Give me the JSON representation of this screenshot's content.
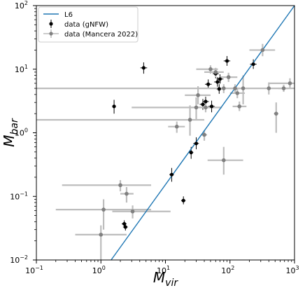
{
  "chart_data": {
    "type": "scatter",
    "xscale": "log",
    "yscale": "log",
    "xlim": [
      0.1,
      1000
    ],
    "ylim": [
      0.01,
      100
    ],
    "xlabel_base": "M",
    "xlabel_sub": "vir",
    "ylabel_base": "M",
    "ylabel_sub": "bar",
    "grid": false,
    "legend_position": "top-left",
    "x_ticks": [
      {
        "value": 0.1,
        "base": "10",
        "exp": "−1"
      },
      {
        "value": 1,
        "base": "10",
        "exp": "0"
      },
      {
        "value": 10,
        "base": "10",
        "exp": "1"
      },
      {
        "value": 100,
        "base": "10",
        "exp": "2"
      },
      {
        "value": 1000,
        "base": "10",
        "exp": "3"
      }
    ],
    "y_ticks": [
      {
        "value": 0.01,
        "base": "10",
        "exp": "−2"
      },
      {
        "value": 0.1,
        "base": "10",
        "exp": "−1"
      },
      {
        "value": 1,
        "base": "10",
        "exp": "0"
      },
      {
        "value": 10,
        "base": "10",
        "exp": "1"
      },
      {
        "value": 100,
        "base": "10",
        "exp": "2"
      }
    ],
    "line": {
      "name": "L6",
      "color": "#1f77b4",
      "x": [
        1.44,
        1000
      ],
      "y": [
        0.01,
        100
      ]
    },
    "series": [
      {
        "name": "data (gNFW)",
        "color": "#000000",
        "points": [
          {
            "x": 1.6,
            "y": 2.6,
            "xlo": 1.5,
            "xhi": 1.7,
            "ylo": 2.0,
            "yhi": 3.3
          },
          {
            "x": 4.6,
            "y": 10.5,
            "xlo": 4.1,
            "xhi": 5.2,
            "ylo": 8.5,
            "yhi": 12.8
          },
          {
            "x": 2.3,
            "y": 0.037,
            "xlo": 2.1,
            "xhi": 2.5,
            "ylo": 0.032,
            "yhi": 0.042
          },
          {
            "x": 2.4,
            "y": 0.033,
            "xlo": 2.2,
            "xhi": 2.6,
            "ylo": 0.029,
            "yhi": 0.038
          },
          {
            "x": 12.5,
            "y": 0.22,
            "xlo": 11.5,
            "xhi": 13.5,
            "ylo": 0.17,
            "yhi": 0.28
          },
          {
            "x": 19,
            "y": 0.086,
            "xlo": 17.5,
            "xhi": 20.5,
            "ylo": 0.075,
            "yhi": 0.1
          },
          {
            "x": 25,
            "y": 0.49,
            "xlo": 23,
            "xhi": 27,
            "ylo": 0.39,
            "yhi": 0.6
          },
          {
            "x": 30,
            "y": 0.68,
            "xlo": 27,
            "xhi": 33,
            "ylo": 0.55,
            "yhi": 0.85
          },
          {
            "x": 38,
            "y": 2.8,
            "xlo": 34,
            "xhi": 42,
            "ylo": 2.3,
            "yhi": 3.4
          },
          {
            "x": 42,
            "y": 3.1,
            "xlo": 38,
            "xhi": 47,
            "ylo": 2.6,
            "yhi": 3.7
          },
          {
            "x": 46,
            "y": 5.8,
            "xlo": 41,
            "xhi": 52,
            "ylo": 4.9,
            "yhi": 6.9
          },
          {
            "x": 52,
            "y": 2.6,
            "xlo": 46,
            "xhi": 58,
            "ylo": 2.1,
            "yhi": 3.2
          },
          {
            "x": 60,
            "y": 8.5,
            "xlo": 54,
            "xhi": 67,
            "ylo": 7.2,
            "yhi": 10.1
          },
          {
            "x": 64,
            "y": 6.3,
            "xlo": 57,
            "xhi": 72,
            "ylo": 5.3,
            "yhi": 7.5
          },
          {
            "x": 70,
            "y": 7.0,
            "xlo": 62,
            "xhi": 79,
            "ylo": 5.9,
            "yhi": 8.3
          },
          {
            "x": 68,
            "y": 4.9,
            "xlo": 61,
            "xhi": 76,
            "ylo": 4.1,
            "yhi": 5.8
          },
          {
            "x": 90,
            "y": 13.5,
            "xlo": 80,
            "xhi": 101,
            "ylo": 11.3,
            "yhi": 16.1
          },
          {
            "x": 230,
            "y": 12.0,
            "xlo": 205,
            "xhi": 258,
            "ylo": 10.1,
            "yhi": 14.3
          }
        ]
      },
      {
        "name": "data (Mancera 2022)",
        "color": "#808080",
        "points": [
          {
            "x": 1.0,
            "y": 0.025,
            "xlo": 0.4,
            "xhi": 2.5,
            "ylo": 0.01,
            "yhi": 0.035
          },
          {
            "x": 1.1,
            "y": 0.062,
            "xlo": 0.2,
            "xhi": 6.0,
            "ylo": 0.03,
            "yhi": 0.09
          },
          {
            "x": 2.0,
            "y": 0.15,
            "xlo": 0.25,
            "xhi": 6.0,
            "ylo": 0.12,
            "yhi": 0.18
          },
          {
            "x": 2.5,
            "y": 0.11,
            "xlo": 2.0,
            "xhi": 3.2,
            "ylo": 0.08,
            "yhi": 0.14
          },
          {
            "x": 3.1,
            "y": 0.058,
            "xlo": 1.5,
            "xhi": 12,
            "ylo": 0.045,
            "yhi": 0.072
          },
          {
            "x": 15,
            "y": 1.25,
            "xlo": 11,
            "xhi": 20,
            "ylo": 1.0,
            "yhi": 1.5
          },
          {
            "x": 24,
            "y": 1.6,
            "xlo": 0.1,
            "xhi": 40,
            "ylo": 0.9,
            "yhi": 2.7
          },
          {
            "x": 30,
            "y": 2.5,
            "xlo": 3.0,
            "xhi": 75,
            "ylo": 1.6,
            "yhi": 3.6
          },
          {
            "x": 32,
            "y": 3.9,
            "xlo": 20,
            "xhi": 50,
            "ylo": 2.8,
            "yhi": 5.4
          },
          {
            "x": 40,
            "y": 0.93,
            "xlo": 36,
            "xhi": 44,
            "ylo": 0.75,
            "yhi": 1.1
          },
          {
            "x": 42,
            "y": 2.5,
            "xlo": 30,
            "xhi": 60,
            "ylo": 2.1,
            "yhi": 3.0
          },
          {
            "x": 50,
            "y": 10.0,
            "xlo": 30,
            "xhi": 65,
            "ylo": 8.5,
            "yhi": 11.5
          },
          {
            "x": 60,
            "y": 9.0,
            "xlo": 40,
            "xhi": 80,
            "ylo": 7.5,
            "yhi": 10.5
          },
          {
            "x": 80,
            "y": 0.37,
            "xlo": 45,
            "xhi": 160,
            "ylo": 0.22,
            "yhi": 0.6
          },
          {
            "x": 80,
            "y": 5.0,
            "xlo": 0.1,
            "xhi": 1000,
            "ylo": 4.2,
            "yhi": 5.8
          },
          {
            "x": 95,
            "y": 7.5,
            "xlo": 70,
            "xhi": 130,
            "ylo": 6.3,
            "yhi": 8.8
          },
          {
            "x": 120,
            "y": 5.0,
            "xlo": 100,
            "xhi": 145,
            "ylo": 4.2,
            "yhi": 5.8
          },
          {
            "x": 130,
            "y": 4.2,
            "xlo": 100,
            "xhi": 170,
            "ylo": 3.5,
            "yhi": 5.0
          },
          {
            "x": 140,
            "y": 2.6,
            "xlo": 110,
            "xhi": 180,
            "ylo": 2.2,
            "yhi": 3.1
          },
          {
            "x": 160,
            "y": 5.0,
            "xlo": 130,
            "xhi": 200,
            "ylo": 2.8,
            "yhi": 8.0
          },
          {
            "x": 320,
            "y": 20.0,
            "xlo": 200,
            "xhi": 500,
            "ylo": 16,
            "yhi": 25
          },
          {
            "x": 400,
            "y": 5.0,
            "xlo": 0.1,
            "xhi": 900,
            "ylo": 4.0,
            "yhi": 6.2
          },
          {
            "x": 520,
            "y": 2.0,
            "xlo": 480,
            "xhi": 560,
            "ylo": 1.0,
            "yhi": 3.0
          },
          {
            "x": 850,
            "y": 6.0,
            "xlo": 400,
            "xhi": 1000,
            "ylo": 5.0,
            "yhi": 7.2
          },
          {
            "x": 680,
            "y": 5.0,
            "xlo": 560,
            "xhi": 800,
            "ylo": 4.4,
            "yhi": 5.7
          }
        ]
      }
    ]
  }
}
